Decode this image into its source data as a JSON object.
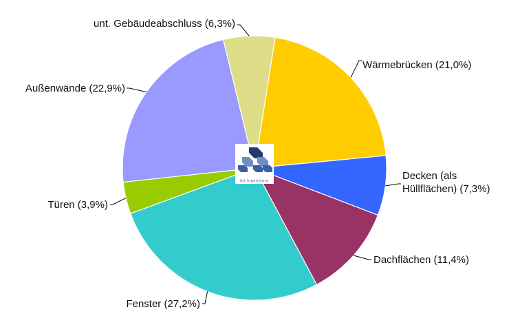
{
  "chart_data": {
    "type": "pie",
    "slices": [
      {
        "label": "Wärmebrücken (21,0%)",
        "value": 21.0,
        "color": "#FFCC00"
      },
      {
        "label": "Decken (als Hüllflächen) (7,3%)",
        "label_lines": [
          "Decken (als",
          "Hüllflächen) (7,3%)"
        ],
        "value": 7.3,
        "color": "#3366FF"
      },
      {
        "label": "Dachflächen (11,4%)",
        "value": 11.4,
        "color": "#993366"
      },
      {
        "label": "Fenster (27,2%)",
        "value": 27.2,
        "color": "#33CCCC"
      },
      {
        "label": "Türen (3,9%)",
        "value": 3.9,
        "color": "#99CC00"
      },
      {
        "label": "Außenwände (22,9%)",
        "value": 22.9,
        "color": "#9999FF"
      },
      {
        "label": "unt. Gebäudeabschluss (6,3%)",
        "value": 6.3,
        "color": "#DDDD88"
      }
    ],
    "legend": "none",
    "start_angle_deg": 9,
    "direction": "clockwise"
  },
  "logo": {
    "icon": "building-blocks-logo",
    "text": "ibt Ingenieure"
  }
}
